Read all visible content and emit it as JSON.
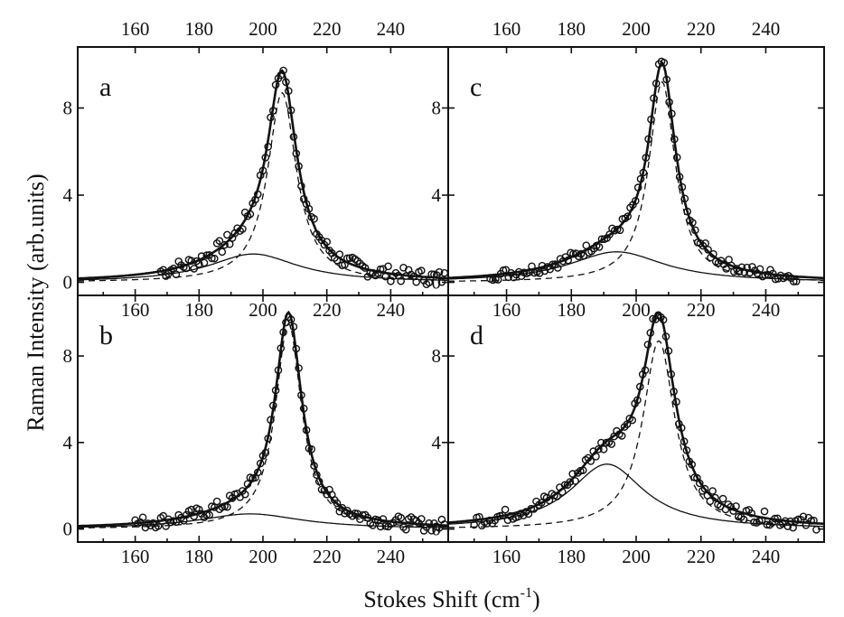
{
  "chart_data": {
    "type": "scatter",
    "xlabel_main": "Stokes Shift (cm",
    "xlabel_sup": "-1",
    "xlabel_end": ")",
    "ylabel": "Raman Intensity (arb.units)",
    "xlim": [
      142,
      258
    ],
    "ylim": [
      -0.6,
      10.8
    ],
    "x_ticks": [
      "160",
      "180",
      "200",
      "220",
      "240"
    ],
    "y_ticks": [
      "0",
      "4",
      "8"
    ],
    "grid": false,
    "panels": [
      {
        "label": "a",
        "broad": {
          "center": 197,
          "amp": 1.3,
          "hw": 17
        },
        "narrow": {
          "center": 206,
          "amp": 8.7,
          "hw": 5.5
        },
        "data_range": [
          168,
          257
        ],
        "noise": 0.35
      },
      {
        "label": "c",
        "broad": {
          "center": 194,
          "amp": 1.4,
          "hw": 18
        },
        "narrow": {
          "center": 208,
          "amp": 9.2,
          "hw": 5
        },
        "data_range": [
          155,
          250
        ],
        "noise": 0.25
      },
      {
        "label": "b",
        "broad": {
          "center": 196,
          "amp": 0.7,
          "hw": 20
        },
        "narrow": {
          "center": 208,
          "amp": 9.5,
          "hw": 5
        },
        "data_range": [
          160,
          257
        ],
        "noise": 0.3
      },
      {
        "label": "d",
        "broad": {
          "center": 191,
          "amp": 3.0,
          "hw": 14
        },
        "narrow": {
          "center": 207,
          "amp": 8.7,
          "hw": 6
        },
        "data_range": [
          150,
          256
        ],
        "noise": 0.3
      }
    ]
  }
}
